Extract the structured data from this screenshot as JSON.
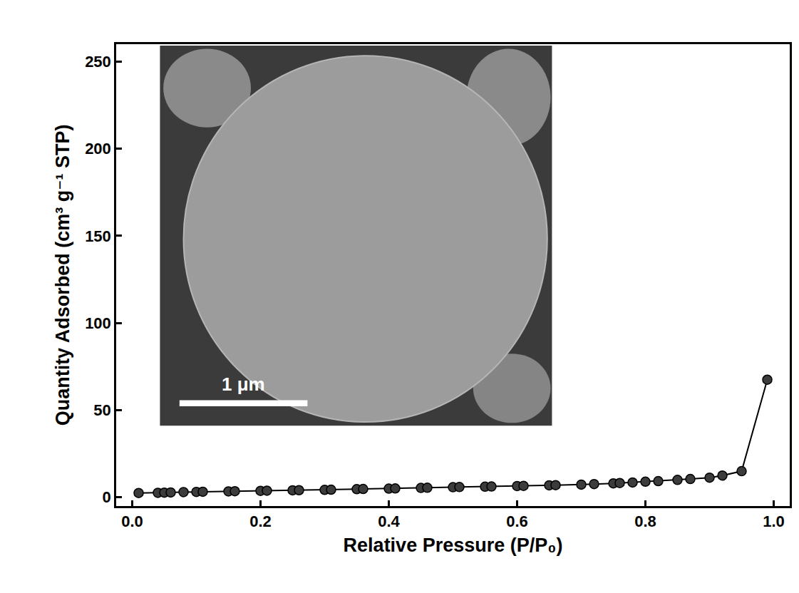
{
  "chart_data": {
    "type": "line",
    "x_label": "Relative Pressure (P/P₀)",
    "y_label": "Quantity Adsorbed (cm³ g⁻¹ STP)",
    "x": [
      0.01,
      0.04,
      0.05,
      0.06,
      0.08,
      0.1,
      0.11,
      0.15,
      0.16,
      0.2,
      0.21,
      0.25,
      0.26,
      0.3,
      0.31,
      0.35,
      0.36,
      0.4,
      0.41,
      0.45,
      0.46,
      0.5,
      0.51,
      0.55,
      0.56,
      0.6,
      0.61,
      0.65,
      0.66,
      0.7,
      0.72,
      0.75,
      0.76,
      0.78,
      0.8,
      0.82,
      0.85,
      0.87,
      0.9,
      0.92,
      0.95,
      0.99
    ],
    "values": [
      2.5,
      2.6,
      2.7,
      2.8,
      3.0,
      3.1,
      3.2,
      3.4,
      3.5,
      3.7,
      3.8,
      4.0,
      4.1,
      4.3,
      4.4,
      4.7,
      4.8,
      5.0,
      5.1,
      5.4,
      5.5,
      5.8,
      5.9,
      6.1,
      6.2,
      6.5,
      6.6,
      6.9,
      7.0,
      7.3,
      7.6,
      8.0,
      8.2,
      8.5,
      9.0,
      9.3,
      10.0,
      10.5,
      11.3,
      12.5,
      15.0,
      67.5
    ],
    "color": "#000000",
    "marker": "circle",
    "line_style": "solid",
    "grid": false,
    "xlim": [
      -0.025,
      1.025
    ],
    "ylim": [
      -5,
      260
    ],
    "xticks": [
      {
        "value": 0,
        "label": "0.0"
      },
      0.2,
      0.4,
      0.6,
      0.8,
      {
        "value": 1,
        "label": "1.0"
      }
    ],
    "yticks": [
      0,
      50,
      100,
      150,
      200,
      250
    ],
    "annotations": [
      "1 μm"
    ]
  }
}
